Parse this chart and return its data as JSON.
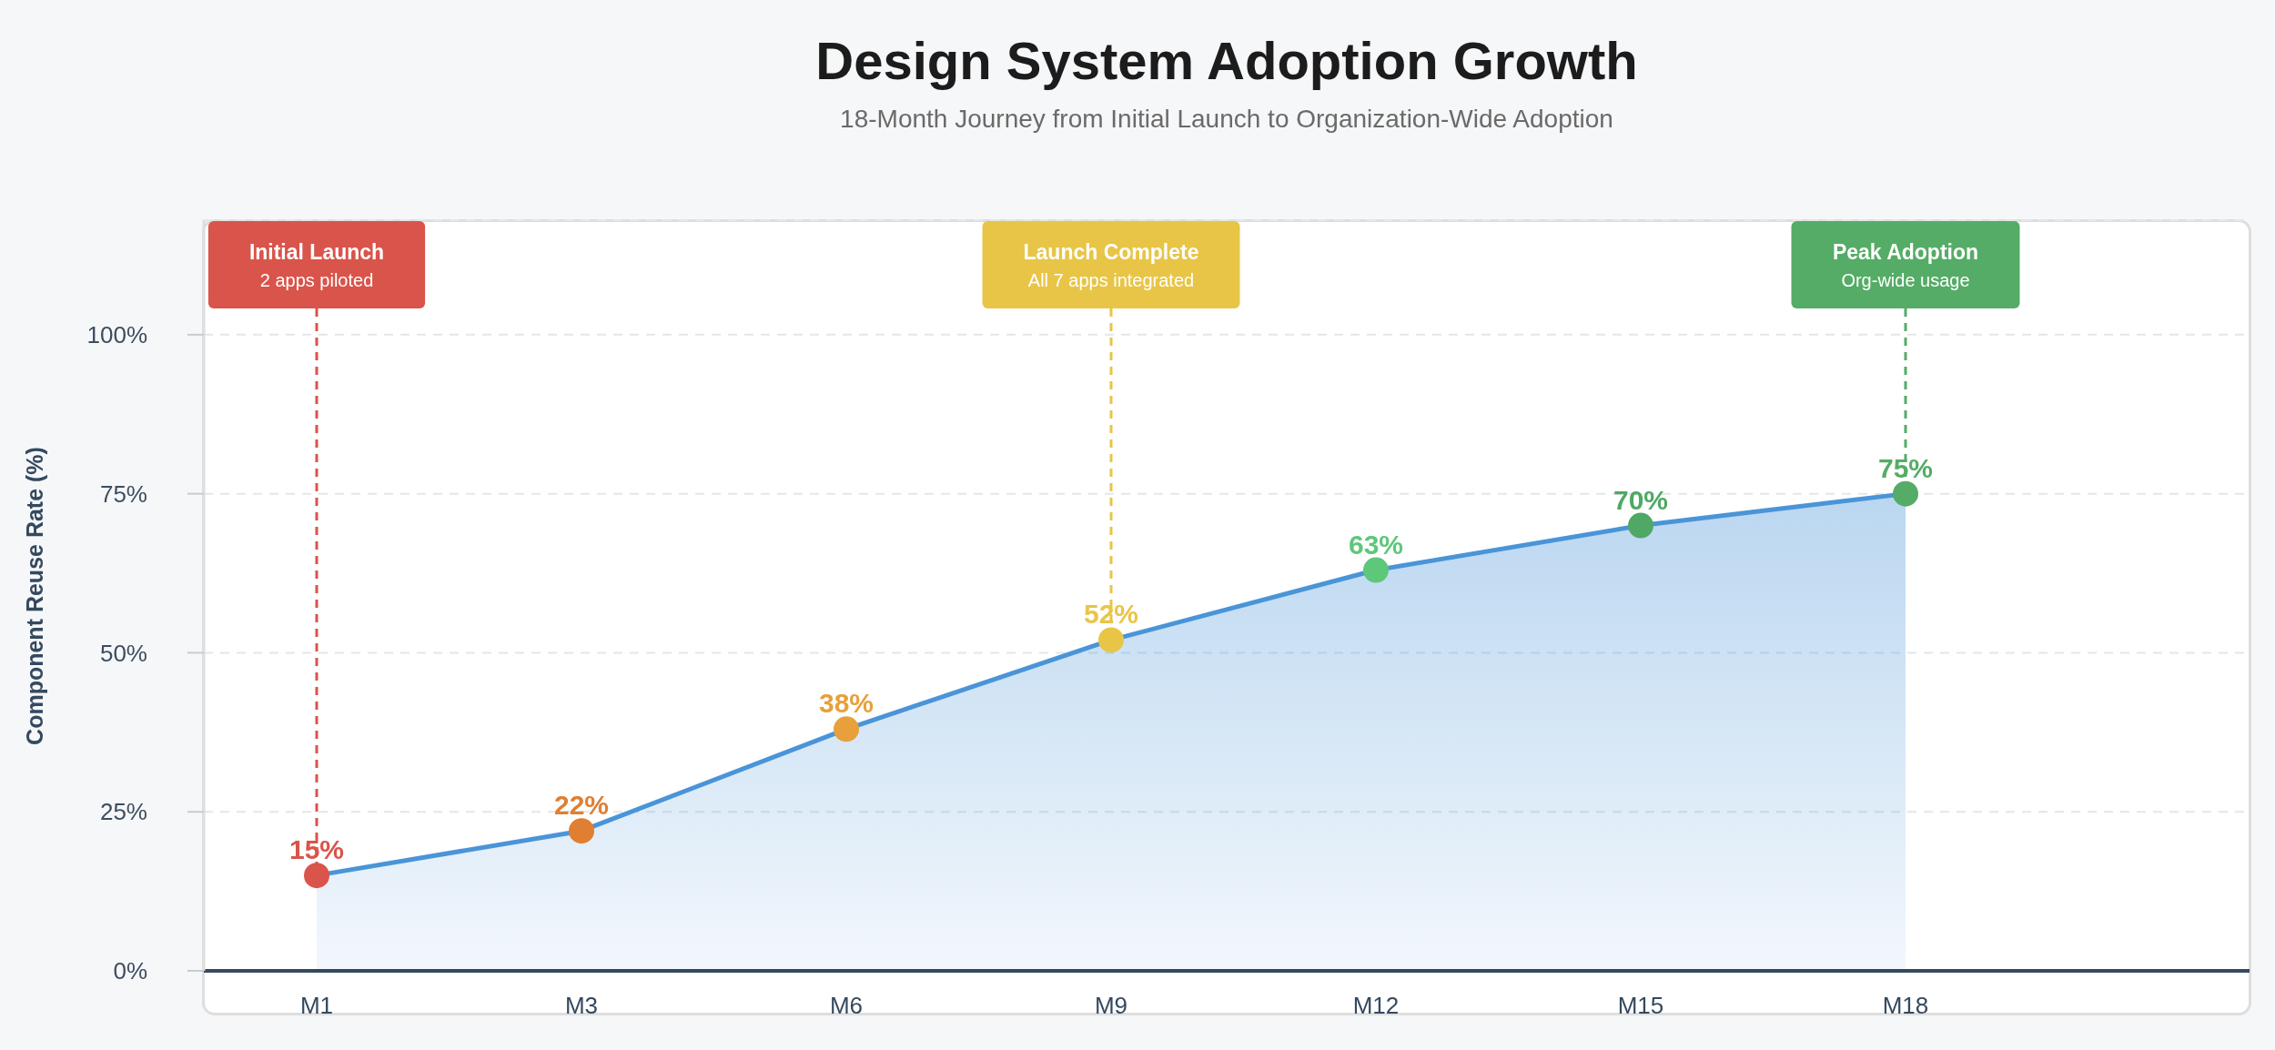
{
  "chart_data": {
    "type": "area",
    "title": "Design System Adoption Growth",
    "subtitle": "18-Month Journey from Initial Launch to Organization-Wide Adoption",
    "ylabel": "Component Reuse Rate (%)",
    "categories": [
      "M1",
      "M3",
      "M6",
      "M9",
      "M12",
      "M15",
      "M18"
    ],
    "values": [
      15,
      22,
      38,
      52,
      63,
      70,
      75
    ],
    "value_labels": [
      "15%",
      "22%",
      "38%",
      "52%",
      "63%",
      "70%",
      "75%"
    ],
    "color": "#4a94d8",
    "colors": [
      "#d9544a",
      "#e07f32",
      "#e8a03c",
      "#e8c547",
      "#5dc77a",
      "#4fa865",
      "#55ac66"
    ],
    "ylim": [
      0,
      118
    ],
    "yticks": [
      {
        "value": 0,
        "label": "0%"
      },
      {
        "value": 25,
        "label": "25%"
      },
      {
        "value": 50,
        "label": "50%"
      },
      {
        "value": 75,
        "label": "75%"
      },
      {
        "value": 100,
        "label": "100%"
      }
    ],
    "grid": "y",
    "marker": "circle",
    "annotations": [
      {
        "text": "Initial Launch\n2 apps piloted",
        "x": "M1",
        "y": 15
      },
      {
        "text": "Launch Complete\nAll 7 apps integrated",
        "x": "M9",
        "y": 52
      },
      {
        "text": "Peak Adoption\nOrg-wide usage",
        "x": "M18",
        "y": 75
      }
    ]
  }
}
